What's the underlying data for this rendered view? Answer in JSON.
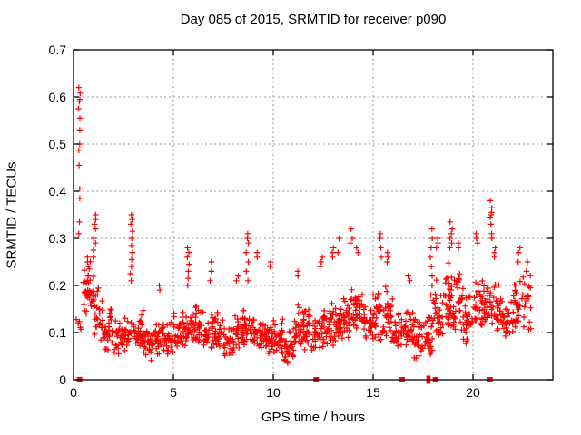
{
  "chart_data": {
    "type": "scatter",
    "title": "Day 085 of 2015, SRMTID for receiver p090",
    "xlabel": "GPS time / hours",
    "ylabel": "SRMTID / TECUs",
    "xlim": [
      0,
      24
    ],
    "ylim": [
      0,
      0.7
    ],
    "xtick_values": [
      0,
      5,
      10,
      15,
      20
    ],
    "xtick_labels": [
      "0",
      "5",
      "10",
      "15",
      "20"
    ],
    "ytick_values": [
      0,
      0.1,
      0.2,
      0.3,
      0.4,
      0.5,
      0.6,
      0.7
    ],
    "ytick_labels": [
      "0",
      "0.1",
      "0.2",
      "0.3",
      "0.4",
      "0.5",
      "0.6",
      "0.7"
    ],
    "grid": true,
    "legend": "none",
    "marker": "plus",
    "colors": {
      "points": "#ff0000",
      "grid": "#9a9a9a",
      "axis": "#000000",
      "background": "#ffffff",
      "text": "#000000"
    },
    "band_bins": [
      [
        0.0,
        0.5,
        0.1,
        0.14,
        5
      ],
      [
        0.5,
        0.5,
        0.13,
        0.26,
        32
      ],
      [
        1.0,
        0.5,
        0.08,
        0.22,
        28
      ],
      [
        1.5,
        0.5,
        0.06,
        0.16,
        30
      ],
      [
        2.0,
        0.5,
        0.05,
        0.13,
        28
      ],
      [
        2.5,
        0.5,
        0.06,
        0.14,
        26
      ],
      [
        3.0,
        0.5,
        0.06,
        0.15,
        30
      ],
      [
        3.5,
        0.5,
        0.04,
        0.12,
        30
      ],
      [
        4.0,
        0.5,
        0.05,
        0.14,
        30
      ],
      [
        4.5,
        0.5,
        0.05,
        0.13,
        28
      ],
      [
        5.0,
        0.5,
        0.06,
        0.16,
        30
      ],
      [
        5.5,
        0.5,
        0.06,
        0.15,
        28
      ],
      [
        6.0,
        0.5,
        0.07,
        0.16,
        30
      ],
      [
        6.5,
        0.5,
        0.06,
        0.15,
        30
      ],
      [
        7.0,
        0.5,
        0.06,
        0.15,
        30
      ],
      [
        7.5,
        0.5,
        0.05,
        0.13,
        28
      ],
      [
        8.0,
        0.5,
        0.06,
        0.16,
        30
      ],
      [
        8.5,
        0.5,
        0.07,
        0.16,
        28
      ],
      [
        9.0,
        0.5,
        0.06,
        0.15,
        30
      ],
      [
        9.5,
        0.5,
        0.05,
        0.14,
        30
      ],
      [
        10.0,
        0.5,
        0.05,
        0.14,
        30
      ],
      [
        10.5,
        0.5,
        0.03,
        0.12,
        30
      ],
      [
        11.0,
        0.5,
        0.06,
        0.16,
        30
      ],
      [
        11.5,
        0.5,
        0.06,
        0.16,
        30
      ],
      [
        12.0,
        0.5,
        0.05,
        0.15,
        28
      ],
      [
        12.5,
        0.5,
        0.07,
        0.17,
        30
      ],
      [
        13.0,
        0.5,
        0.08,
        0.18,
        30
      ],
      [
        13.5,
        0.5,
        0.08,
        0.2,
        30
      ],
      [
        14.0,
        0.5,
        0.1,
        0.2,
        30
      ],
      [
        14.5,
        0.5,
        0.08,
        0.18,
        30
      ],
      [
        15.0,
        0.5,
        0.08,
        0.2,
        30
      ],
      [
        15.5,
        0.5,
        0.08,
        0.2,
        30
      ],
      [
        16.0,
        0.5,
        0.05,
        0.15,
        28
      ],
      [
        16.5,
        0.5,
        0.06,
        0.16,
        30
      ],
      [
        17.0,
        0.5,
        0.04,
        0.15,
        30
      ],
      [
        17.5,
        0.5,
        0.05,
        0.16,
        30
      ],
      [
        18.0,
        0.5,
        0.08,
        0.22,
        32
      ],
      [
        18.5,
        0.5,
        0.1,
        0.26,
        34
      ],
      [
        19.0,
        0.5,
        0.1,
        0.24,
        32
      ],
      [
        19.5,
        0.5,
        0.07,
        0.2,
        30
      ],
      [
        20.0,
        0.5,
        0.1,
        0.22,
        30
      ],
      [
        20.5,
        0.5,
        0.1,
        0.22,
        30
      ],
      [
        21.0,
        0.5,
        0.1,
        0.21,
        30
      ],
      [
        21.5,
        0.5,
        0.09,
        0.18,
        28
      ],
      [
        22.0,
        0.5,
        0.1,
        0.22,
        28
      ],
      [
        22.5,
        0.4,
        0.09,
        0.25,
        20
      ]
    ],
    "spike_columns": [
      {
        "x": 0.28,
        "ys": [
          0.62,
          0.608,
          0.595,
          0.59,
          0.575,
          0.555,
          0.53,
          0.5,
          0.487,
          0.455,
          0.405,
          0.385,
          0.335,
          0.31
        ]
      },
      {
        "x": 0.75,
        "ys": [
          0.26,
          0.25,
          0.24,
          0.235,
          0.22,
          0.21
        ]
      },
      {
        "x": 1.05,
        "ys": [
          0.35,
          0.34,
          0.33,
          0.32,
          0.3,
          0.29,
          0.275,
          0.26
        ]
      },
      {
        "x": 2.9,
        "ys": [
          0.35,
          0.34,
          0.33,
          0.315,
          0.3,
          0.285,
          0.27,
          0.255,
          0.24,
          0.225,
          0.21
        ]
      },
      {
        "x": 4.3,
        "ys": [
          0.2,
          0.19
        ]
      },
      {
        "x": 5.75,
        "ys": [
          0.28,
          0.27,
          0.26,
          0.245,
          0.23,
          0.215,
          0.2
        ]
      },
      {
        "x": 6.9,
        "ys": [
          0.25,
          0.23,
          0.21
        ]
      },
      {
        "x": 8.2,
        "ys": [
          0.22,
          0.21
        ]
      },
      {
        "x": 8.7,
        "ys": [
          0.31,
          0.3,
          0.29,
          0.27,
          0.25,
          0.23,
          0.21
        ]
      },
      {
        "x": 9.2,
        "ys": [
          0.27,
          0.26
        ]
      },
      {
        "x": 9.9,
        "ys": [
          0.25,
          0.24
        ]
      },
      {
        "x": 11.2,
        "ys": [
          0.23,
          0.22
        ]
      },
      {
        "x": 12.4,
        "ys": [
          0.26,
          0.25,
          0.24
        ]
      },
      {
        "x": 13.0,
        "ys": [
          0.28,
          0.27,
          0.26
        ]
      },
      {
        "x": 13.3,
        "ys": [
          0.3,
          0.27
        ]
      },
      {
        "x": 13.9,
        "ys": [
          0.32,
          0.3,
          0.29
        ]
      },
      {
        "x": 14.2,
        "ys": [
          0.28,
          0.27
        ]
      },
      {
        "x": 15.4,
        "ys": [
          0.31,
          0.3,
          0.28,
          0.26
        ]
      },
      {
        "x": 15.7,
        "ys": [
          0.27,
          0.26,
          0.25
        ]
      },
      {
        "x": 16.8,
        "ys": [
          0.22,
          0.21
        ]
      },
      {
        "x": 17.9,
        "ys": [
          0.32,
          0.3,
          0.28,
          0.26,
          0.24,
          0.22,
          0.2,
          0.18
        ]
      },
      {
        "x": 18.2,
        "ys": [
          0.3,
          0.29,
          0.28
        ]
      },
      {
        "x": 18.9,
        "ys": [
          0.335,
          0.32,
          0.31,
          0.3,
          0.29,
          0.28
        ]
      },
      {
        "x": 19.3,
        "ys": [
          0.29,
          0.28
        ]
      },
      {
        "x": 20.2,
        "ys": [
          0.31,
          0.3,
          0.29
        ]
      },
      {
        "x": 20.9,
        "ys": [
          0.38,
          0.365,
          0.355,
          0.35,
          0.345,
          0.33,
          0.31,
          0.3
        ]
      },
      {
        "x": 21.1,
        "ys": [
          0.28,
          0.27,
          0.26
        ]
      },
      {
        "x": 22.3,
        "ys": [
          0.28,
          0.27,
          0.25
        ]
      },
      {
        "x": 22.7,
        "ys": [
          0.25,
          0.23
        ]
      }
    ],
    "zero_markers": [
      {
        "x": 0.3,
        "style": "square"
      },
      {
        "x": 12.15,
        "style": "square"
      },
      {
        "x": 16.45,
        "style": "square"
      },
      {
        "x": 17.72,
        "style": "bar"
      },
      {
        "x": 17.82,
        "style": "bar"
      },
      {
        "x": 18.12,
        "style": "square"
      },
      {
        "x": 20.85,
        "style": "square"
      }
    ]
  }
}
